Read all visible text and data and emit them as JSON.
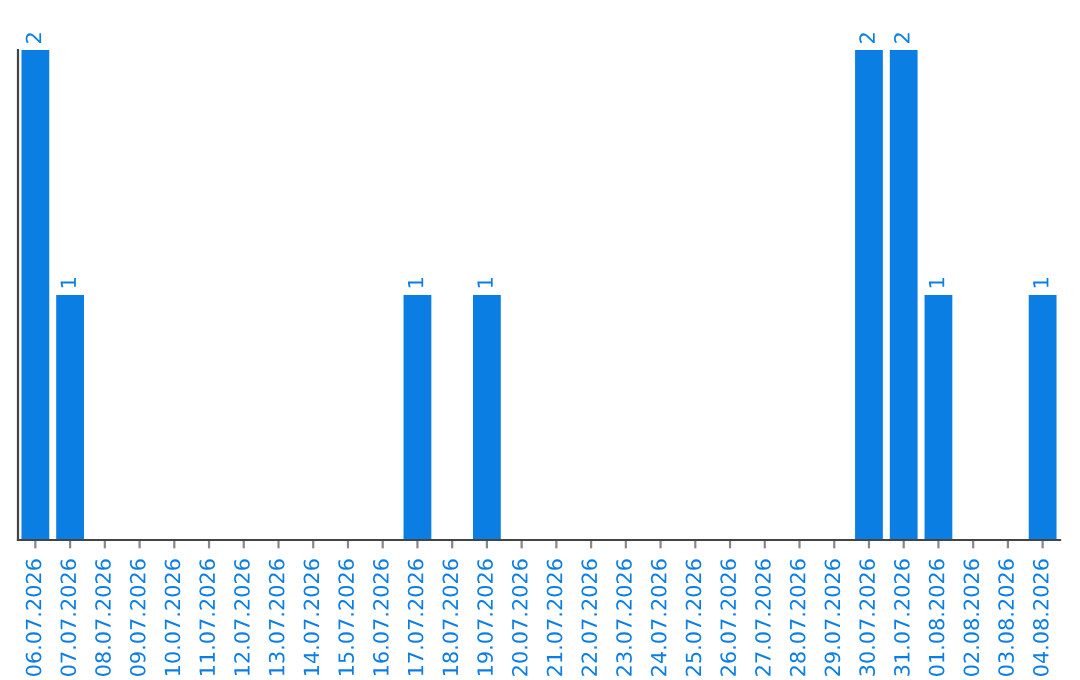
{
  "chart_data": {
    "type": "bar",
    "categories": [
      "06.07.2026",
      "07.07.2026",
      "08.07.2026",
      "09.07.2026",
      "10.07.2026",
      "11.07.2026",
      "12.07.2026",
      "13.07.2026",
      "14.07.2026",
      "15.07.2026",
      "16.07.2026",
      "17.07.2026",
      "18.07.2026",
      "19.07.2026",
      "20.07.2026",
      "21.07.2026",
      "22.07.2026",
      "23.07.2026",
      "24.07.2026",
      "25.07.2026",
      "26.07.2026",
      "27.07.2026",
      "28.07.2026",
      "29.07.2026",
      "30.07.2026",
      "31.07.2026",
      "01.08.2026",
      "02.08.2026",
      "03.08.2026",
      "04.08.2026"
    ],
    "values": [
      2,
      1,
      0,
      0,
      0,
      0,
      0,
      0,
      0,
      0,
      0,
      1,
      0,
      1,
      0,
      0,
      0,
      0,
      0,
      0,
      0,
      0,
      0,
      0,
      2,
      2,
      1,
      0,
      0,
      1
    ],
    "value_labels": [
      "2",
      "1",
      null,
      null,
      null,
      null,
      null,
      null,
      null,
      null,
      null,
      "1",
      null,
      "1",
      null,
      null,
      null,
      null,
      null,
      null,
      null,
      null,
      null,
      null,
      "2",
      "2",
      "1",
      null,
      null,
      "1"
    ],
    "color": "#0a7ee3",
    "relative": false,
    "grid": false,
    "legend": false
  }
}
